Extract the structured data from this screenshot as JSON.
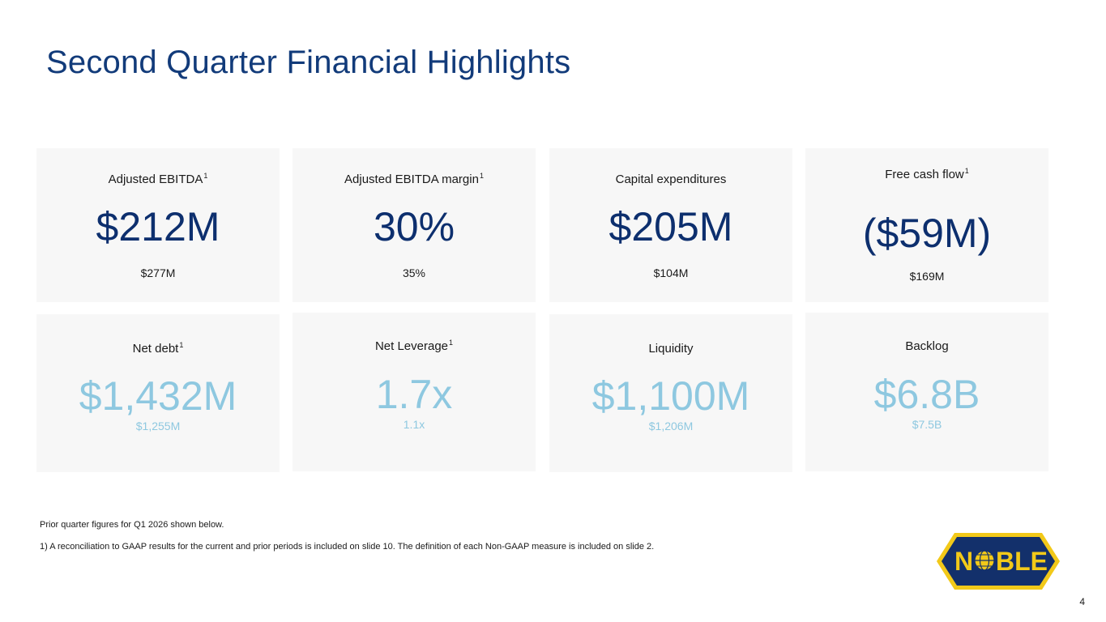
{
  "slide": {
    "title": "Second Quarter Financial Highlights",
    "page_number": "4"
  },
  "metrics_top": [
    {
      "label": "Adjusted EBITDA",
      "sup": "1",
      "value": "$212M",
      "prior": "$277M"
    },
    {
      "label": "Adjusted EBITDA margin",
      "sup": "1",
      "value": "30%",
      "prior": "35%"
    },
    {
      "label": "Capital expenditures",
      "sup": "",
      "value": "$205M",
      "prior": "$104M"
    },
    {
      "label": "Free cash flow",
      "sup": "1",
      "value": "($59M)",
      "prior": "$169M"
    }
  ],
  "metrics_bottom": [
    {
      "label": "Net debt",
      "sup": "1",
      "value": "$1,432M",
      "prior": "$1,255M"
    },
    {
      "label": "Net Leverage",
      "sup": "1",
      "value": "1.7x",
      "prior": "1.1x"
    },
    {
      "label": "Liquidity",
      "sup": "",
      "value": "$1,100M",
      "prior": "$1,206M"
    },
    {
      "label": "Backlog",
      "sup": "",
      "value": "$6.8B",
      "prior": "$7.5B"
    }
  ],
  "footnotes": {
    "prior_note": "Prior quarter figures for Q1 2026 shown below.",
    "note_1": "1) A reconciliation to GAAP results for the current and prior periods is included on slide 10. The definition of each Non-GAAP measure is included on slide 2."
  },
  "logo": {
    "text_left": "N",
    "text_right": "BLE",
    "colors": {
      "navy": "#13306b",
      "gold": "#f2c919"
    }
  },
  "colors": {
    "title": "#123b7a",
    "primary_value": "#0d2f6e",
    "secondary_value": "#8ec8e0",
    "card_bg": "#f7f7f7"
  }
}
